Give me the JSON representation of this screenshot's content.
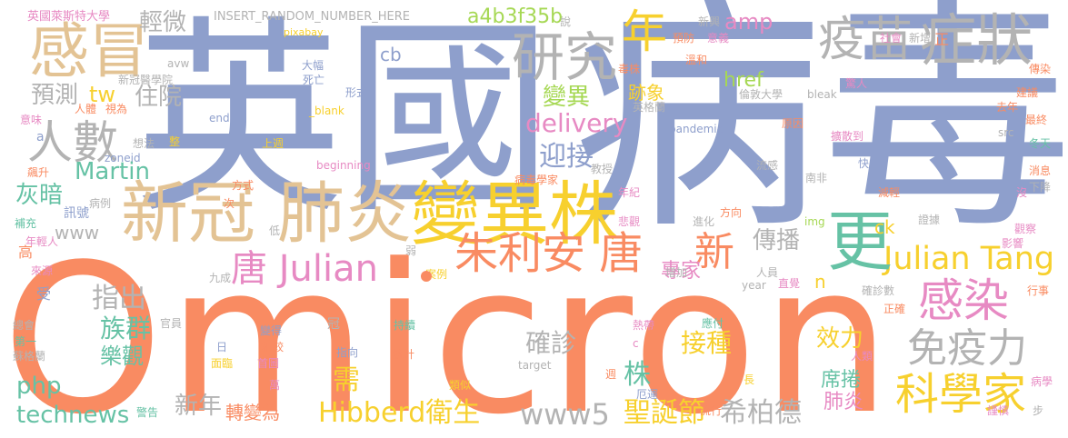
{
  "colors": {
    "blue": "#8e9fcc",
    "orange": "#f98b62",
    "tan": "#e3c394",
    "yellow": "#f7d02e",
    "green": "#66c2a5",
    "gray": "#b3b3b3",
    "pink": "#e78ac3",
    "lime": "#a6d854"
  },
  "words": [
    {
      "text": "Omicron",
      "color": "orange"
    },
    {
      "text": "英國",
      "color": "blue"
    },
    {
      "text": "病毒",
      "color": "blue"
    },
    {
      "text": "變異株",
      "color": "yellow"
    },
    {
      "text": "新冠",
      "color": "tan"
    },
    {
      "text": "肺炎",
      "color": "tan"
    },
    {
      "text": "感冒",
      "color": "tan"
    },
    {
      "text": "疫苗",
      "color": "gray"
    },
    {
      "text": "症狀",
      "color": "gray"
    },
    {
      "text": "研究",
      "color": "gray"
    },
    {
      "text": "人數",
      "color": "gray"
    },
    {
      "text": "朱利安 唐",
      "color": "orange"
    },
    {
      "text": "唐 Julian",
      "color": "pink"
    },
    {
      "text": "Julian Tang",
      "color": "yellow"
    },
    {
      "text": "感染",
      "color": "pink"
    },
    {
      "text": "科學家",
      "color": "yellow"
    },
    {
      "text": "免疫力",
      "color": "gray"
    },
    {
      "text": "年",
      "color": "yellow"
    },
    {
      "text": "更",
      "color": "green"
    },
    {
      "text": "新",
      "color": "orange"
    },
    {
      "text": "輕微",
      "color": "gray"
    },
    {
      "text": "預測",
      "color": "gray"
    },
    {
      "text": "住院",
      "color": "gray"
    },
    {
      "text": "tw",
      "color": "yellow"
    },
    {
      "text": "amp",
      "color": "pink"
    },
    {
      "text": "變異",
      "color": "lime"
    },
    {
      "text": "a4b3f35b",
      "color": "lime"
    },
    {
      "text": "delivery",
      "color": "pink"
    },
    {
      "text": "迎接",
      "color": "blue"
    },
    {
      "text": "Martin",
      "color": "green"
    },
    {
      "text": "灰暗",
      "color": "green"
    },
    {
      "text": "www",
      "color": "gray"
    },
    {
      "text": "跡象",
      "color": "yellow"
    },
    {
      "text": "href",
      "color": "lime"
    },
    {
      "text": "傳播",
      "color": "gray"
    },
    {
      "text": "專家",
      "color": "pink"
    },
    {
      "text": "指出",
      "color": "gray"
    },
    {
      "text": "族群",
      "color": "green"
    },
    {
      "text": "樂觀",
      "color": "green"
    },
    {
      "text": "確診",
      "color": "gray"
    },
    {
      "text": "接種",
      "color": "yellow"
    },
    {
      "text": "php",
      "color": "green"
    },
    {
      "text": "technews",
      "color": "green"
    },
    {
      "text": "需",
      "color": "yellow"
    },
    {
      "text": "新年",
      "color": "gray"
    },
    {
      "text": "轉變為",
      "color": "orange"
    },
    {
      "text": "Hibberd衛生",
      "color": "yellow"
    },
    {
      "text": "www5",
      "color": "gray"
    },
    {
      "text": "聖誕節",
      "color": "yellow"
    },
    {
      "text": "希柏德",
      "color": "gray"
    },
    {
      "text": "株",
      "color": "green"
    },
    {
      "text": "效力",
      "color": "yellow"
    },
    {
      "text": "席捲",
      "color": "green"
    },
    {
      "text": "肺炎",
      "color": "pink"
    },
    {
      "text": "ck",
      "color": "yellow"
    },
    {
      "text": "n",
      "color": "yellow"
    },
    {
      "text": "INSERT_RANDOM_NUMBER_HERE",
      "color": "gray"
    },
    {
      "text": "英國萊斯特大學",
      "color": "pink"
    },
    {
      "text": "pixabay",
      "color": "yellow"
    },
    {
      "text": "cb",
      "color": "blue"
    },
    {
      "text": "新冠醫學院",
      "color": "gray"
    },
    {
      "text": "大幅",
      "color": "blue"
    },
    {
      "text": "死亡",
      "color": "blue"
    },
    {
      "text": "形式",
      "color": "blue"
    },
    {
      "text": "_blank",
      "color": "yellow"
    },
    {
      "text": "end",
      "color": "blue"
    },
    {
      "text": "想法",
      "color": "gray"
    },
    {
      "text": "上週",
      "color": "yellow"
    },
    {
      "text": "意味",
      "color": "pink"
    },
    {
      "text": "飆升",
      "color": "orange"
    },
    {
      "text": "補充",
      "color": "green"
    },
    {
      "text": "來源",
      "color": "pink"
    },
    {
      "text": "高",
      "color": "orange"
    },
    {
      "text": "受",
      "color": "blue"
    },
    {
      "text": "總會",
      "color": "gray"
    },
    {
      "text": "第一",
      "color": "green"
    },
    {
      "text": "蘇格蘭",
      "color": "gray"
    },
    {
      "text": "zoneid",
      "color": "blue"
    },
    {
      "text": "官員",
      "color": "gray"
    },
    {
      "text": "beginning",
      "color": "pink"
    },
    {
      "text": "方式",
      "color": "orange"
    },
    {
      "text": "病例",
      "color": "gray"
    },
    {
      "text": "年輕人",
      "color": "pink"
    },
    {
      "text": "訊號",
      "color": "blue"
    },
    {
      "text": "低",
      "color": "gray"
    },
    {
      "text": "九成",
      "color": "gray"
    },
    {
      "text": "弱",
      "color": "gray"
    },
    {
      "text": "案例",
      "color": "yellow"
    },
    {
      "text": "變得",
      "color": "blue"
    },
    {
      "text": "相較",
      "color": "orange"
    },
    {
      "text": "首圖",
      "color": "pink"
    },
    {
      "text": "指向",
      "color": "blue"
    },
    {
      "text": "持續",
      "color": "green"
    },
    {
      "text": "統計",
      "color": "orange"
    },
    {
      "text": "類似",
      "color": "yellow"
    },
    {
      "text": "冠",
      "color": "gray"
    },
    {
      "text": "日",
      "color": "blue"
    },
    {
      "text": "面臨",
      "color": "yellow"
    },
    {
      "text": "萬",
      "color": "pink"
    },
    {
      "text": "警告",
      "color": "green"
    },
    {
      "text": "熱帶",
      "color": "pink"
    },
    {
      "text": "應付",
      "color": "green"
    },
    {
      "text": "target",
      "color": "gray"
    },
    {
      "text": "週",
      "color": "orange"
    },
    {
      "text": "厄運",
      "color": "blue"
    },
    {
      "text": "流行",
      "color": "orange"
    },
    {
      "text": "長",
      "color": "yellow"
    },
    {
      "text": "說",
      "color": "gray"
    },
    {
      "text": "新興",
      "color": "gray"
    },
    {
      "text": "預防",
      "color": "orange"
    },
    {
      "text": "毒株",
      "color": "orange"
    },
    {
      "text": "溫和",
      "color": "orange"
    },
    {
      "text": "意義",
      "color": "pink"
    },
    {
      "text": "英格蘭",
      "color": "gray"
    },
    {
      "text": "倫敦大學",
      "color": "gray"
    },
    {
      "text": "驚人",
      "color": "pink"
    },
    {
      "text": "bleak",
      "color": "gray"
    },
    {
      "text": "pandemic",
      "color": "blue"
    },
    {
      "text": "原因",
      "color": "orange"
    },
    {
      "text": "擴散到",
      "color": "pink"
    },
    {
      "text": "教授",
      "color": "gray"
    },
    {
      "text": "病毒學家",
      "color": "orange"
    },
    {
      "text": "年紀",
      "color": "pink"
    },
    {
      "text": "流感",
      "color": "gray"
    },
    {
      "text": "南非",
      "color": "gray"
    },
    {
      "text": "快",
      "color": "blue"
    },
    {
      "text": "減輕",
      "color": "orange"
    },
    {
      "text": "悲觀",
      "color": "pink"
    },
    {
      "text": "方向",
      "color": "orange"
    },
    {
      "text": "img",
      "color": "lime"
    },
    {
      "text": "進化",
      "color": "gray"
    },
    {
      "text": "證據",
      "color": "gray"
    },
    {
      "text": "增加",
      "color": "gray"
    },
    {
      "text": "year",
      "color": "gray"
    },
    {
      "text": "直覺",
      "color": "pink"
    },
    {
      "text": "人員",
      "color": "gray"
    },
    {
      "text": "確診數",
      "color": "gray"
    },
    {
      "text": "正確",
      "color": "orange"
    },
    {
      "text": "影響",
      "color": "pink"
    },
    {
      "text": "觀察",
      "color": "pink"
    },
    {
      "text": "行事",
      "color": "orange"
    },
    {
      "text": "人類",
      "color": "pink"
    },
    {
      "text": "社會",
      "color": "pink"
    },
    {
      "text": "新增",
      "color": "gray"
    },
    {
      "text": "正",
      "color": "orange"
    },
    {
      "text": "傳染",
      "color": "orange"
    },
    {
      "text": "建議",
      "color": "orange"
    },
    {
      "text": "去年",
      "color": "orange"
    },
    {
      "text": "最終",
      "color": "orange"
    },
    {
      "text": "冬天",
      "color": "green"
    },
    {
      "text": "src",
      "color": "gray"
    },
    {
      "text": "消息",
      "color": "orange"
    },
    {
      "text": "沒",
      "color": "pink"
    },
    {
      "text": "下降",
      "color": "gray"
    },
    {
      "text": "病學",
      "color": "pink"
    },
    {
      "text": "謹慎",
      "color": "pink"
    },
    {
      "text": "步",
      "color": "gray"
    },
    {
      "text": "人體",
      "color": "orange"
    },
    {
      "text": "視為",
      "color": "orange"
    },
    {
      "text": "整",
      "color": "yellow"
    },
    {
      "text": "次",
      "color": "orange"
    },
    {
      "text": "c",
      "color": "pink"
    },
    {
      "text": "avw",
      "color": "gray"
    },
    {
      "text": "a",
      "color": "blue"
    }
  ]
}
